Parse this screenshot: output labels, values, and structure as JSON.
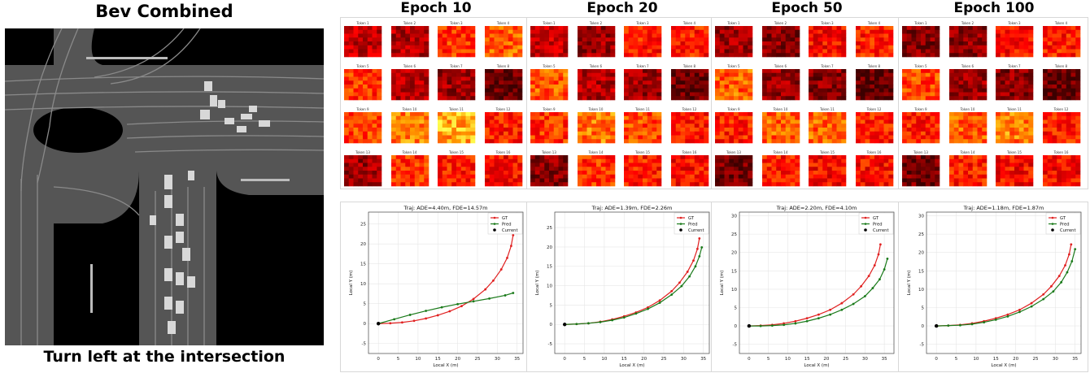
{
  "left": {
    "title": "Bev Combined",
    "caption": "Turn left at the intersection"
  },
  "colors": {
    "gt": "#e02020",
    "pred": "#1a7a1a",
    "current": "#000000",
    "road": "#555555",
    "lane": "#8a8a8a",
    "vehicle": "#d8d8d8",
    "offroad": "#000000"
  },
  "epochs": [
    {
      "title": "Epoch 10",
      "tokens": [
        "Token 1",
        "Token 2",
        "Token 3",
        "Token 4",
        "Token 5",
        "Token 6",
        "Token 7",
        "Token 8",
        "Token 9",
        "Token 10",
        "Token 11",
        "Token 12",
        "Token 13",
        "Token 14",
        "Token 15",
        "Token 16"
      ],
      "token_intensity": [
        0.35,
        0.3,
        0.6,
        0.7,
        0.6,
        0.3,
        0.25,
        0.1,
        0.65,
        0.75,
        0.85,
        0.55,
        0.25,
        0.6,
        0.55,
        0.5
      ]
    },
    {
      "title": "Epoch 20",
      "tokens": [
        "Token 1",
        "Token 2",
        "Token 3",
        "Token 4",
        "Token 5",
        "Token 6",
        "Token 7",
        "Token 8",
        "Token 9",
        "Token 10",
        "Token 11",
        "Token 12",
        "Token 13",
        "Token 14",
        "Token 15",
        "Token 16"
      ],
      "token_intensity": [
        0.35,
        0.25,
        0.55,
        0.55,
        0.7,
        0.3,
        0.25,
        0.12,
        0.6,
        0.75,
        0.65,
        0.55,
        0.2,
        0.6,
        0.55,
        0.5
      ]
    },
    {
      "title": "Epoch 50",
      "tokens": [
        "Token 1",
        "Token 2",
        "Token 3",
        "Token 4",
        "Token 5",
        "Token 6",
        "Token 7",
        "Token 8",
        "Token 9",
        "Token 10",
        "Token 11",
        "Token 12",
        "Token 13",
        "Token 14",
        "Token 15",
        "Token 16"
      ],
      "token_intensity": [
        0.25,
        0.2,
        0.5,
        0.55,
        0.7,
        0.25,
        0.2,
        0.1,
        0.55,
        0.7,
        0.7,
        0.55,
        0.15,
        0.55,
        0.5,
        0.5
      ]
    },
    {
      "title": "Epoch 100",
      "tokens": [
        "Token 1",
        "Token 2",
        "Token 3",
        "Token 4",
        "Token 5",
        "Token 6",
        "Token 7",
        "Token 8",
        "Token 9",
        "Token 10",
        "Token 11",
        "Token 12",
        "Token 13",
        "Token 14",
        "Token 15",
        "Token 16"
      ],
      "token_intensity": [
        0.2,
        0.2,
        0.5,
        0.55,
        0.65,
        0.25,
        0.2,
        0.1,
        0.55,
        0.7,
        0.75,
        0.55,
        0.15,
        0.55,
        0.5,
        0.5
      ]
    }
  ],
  "chart_data": [
    {
      "type": "line",
      "title": "Traj: ADE=4.40m, FDE=14.57m",
      "xlabel": "Local X (m)",
      "ylabel": "Local Y (m)",
      "xlim": [
        -2.5,
        36.5
      ],
      "ylim": [
        -7.5,
        28
      ],
      "xticks": [
        0,
        5,
        10,
        15,
        20,
        25,
        30,
        35
      ],
      "yticks": [
        -5,
        0,
        5,
        10,
        15,
        20,
        25
      ],
      "grid": true,
      "legend": "top-right",
      "series": [
        {
          "name": "GT",
          "x": [
            0,
            3,
            6,
            9,
            12,
            15,
            18,
            21,
            24,
            27,
            29,
            31,
            32.5,
            33.5,
            34
          ],
          "y": [
            0,
            0.1,
            0.3,
            0.7,
            1.3,
            2.1,
            3.1,
            4.4,
            6.2,
            8.6,
            10.8,
            13.6,
            16.5,
            19.5,
            22.2
          ]
        },
        {
          "name": "Pred",
          "x": [
            0,
            4,
            8,
            12,
            16,
            20,
            24,
            28,
            32,
            34
          ],
          "y": [
            0,
            1.1,
            2.2,
            3.2,
            4.1,
            4.9,
            5.6,
            6.3,
            7.1,
            7.7
          ]
        },
        {
          "name": "Current",
          "x": [
            0
          ],
          "y": [
            0
          ]
        }
      ]
    },
    {
      "type": "line",
      "title": "Traj: ADE=1.39m, FDE=2.26m",
      "xlabel": "Local X (m)",
      "ylabel": "Local Y (m)",
      "xlim": [
        -2.5,
        36.5
      ],
      "ylim": [
        -7.5,
        29
      ],
      "xticks": [
        0,
        5,
        10,
        15,
        20,
        25,
        30,
        35
      ],
      "yticks": [
        -5,
        0,
        5,
        10,
        15,
        20,
        25
      ],
      "grid": true,
      "legend": "top-right",
      "series": [
        {
          "name": "GT",
          "x": [
            0,
            3,
            6,
            9,
            12,
            15,
            18,
            21,
            24,
            27,
            29,
            31,
            32.5,
            33.5,
            34
          ],
          "y": [
            0,
            0.1,
            0.3,
            0.7,
            1.3,
            2.1,
            3.1,
            4.4,
            6.2,
            8.6,
            10.8,
            13.6,
            16.5,
            19.5,
            22.2
          ]
        },
        {
          "name": "Pred",
          "x": [
            0,
            3,
            6,
            9,
            12,
            15,
            18,
            21,
            24,
            27,
            29.5,
            31.5,
            33,
            34,
            34.6
          ],
          "y": [
            0,
            0.1,
            0.3,
            0.6,
            1.1,
            1.8,
            2.8,
            4,
            5.6,
            7.7,
            9.9,
            12.4,
            15,
            17.6,
            19.9
          ]
        },
        {
          "name": "Current",
          "x": [
            0
          ],
          "y": [
            0
          ]
        }
      ]
    },
    {
      "type": "line",
      "title": "Traj: ADE=2.20m, FDE=4.10m",
      "xlabel": "Local X (m)",
      "ylabel": "Local Y (m)",
      "xlim": [
        -2.5,
        37.5
      ],
      "ylim": [
        -7.5,
        31
      ],
      "xticks": [
        0,
        5,
        10,
        15,
        20,
        25,
        30,
        35
      ],
      "yticks": [
        -5,
        0,
        5,
        10,
        15,
        20,
        25,
        30
      ],
      "grid": true,
      "legend": "top-right",
      "series": [
        {
          "name": "GT",
          "x": [
            0,
            3,
            6,
            9,
            12,
            15,
            18,
            21,
            24,
            27,
            29,
            31,
            32.5,
            33.5,
            34
          ],
          "y": [
            0,
            0.1,
            0.3,
            0.7,
            1.3,
            2.1,
            3.1,
            4.4,
            6.2,
            8.6,
            10.8,
            13.6,
            16.5,
            19.5,
            22.2
          ]
        },
        {
          "name": "Pred",
          "x": [
            0,
            3,
            6,
            9,
            12,
            15,
            18,
            21,
            24,
            27,
            30,
            32,
            33.8,
            35,
            35.8
          ],
          "y": [
            0,
            0,
            0.1,
            0.3,
            0.7,
            1.3,
            2.1,
            3.1,
            4.4,
            6,
            8.1,
            10.3,
            12.7,
            15.4,
            18.3
          ]
        },
        {
          "name": "Current",
          "x": [
            0
          ],
          "y": [
            0
          ]
        }
      ]
    },
    {
      "type": "line",
      "title": "Traj: ADE=1.18m, FDE=1.87m",
      "xlabel": "Local X (m)",
      "ylabel": "Local Y (m)",
      "xlim": [
        -2.5,
        36.5
      ],
      "ylim": [
        -7.5,
        31
      ],
      "xticks": [
        0,
        5,
        10,
        15,
        20,
        25,
        30,
        35
      ],
      "yticks": [
        -5,
        0,
        5,
        10,
        15,
        20,
        25,
        30
      ],
      "grid": true,
      "legend": "top-right",
      "series": [
        {
          "name": "GT",
          "x": [
            0,
            3,
            6,
            9,
            12,
            15,
            18,
            21,
            24,
            27,
            29,
            31,
            32.5,
            33.5,
            34
          ],
          "y": [
            0,
            0.1,
            0.3,
            0.7,
            1.3,
            2.1,
            3.1,
            4.4,
            6.2,
            8.6,
            10.8,
            13.6,
            16.5,
            19.5,
            22.2
          ]
        },
        {
          "name": "Pred",
          "x": [
            0,
            3,
            6,
            9,
            12,
            15,
            18,
            21,
            24,
            27,
            29.5,
            31.5,
            33,
            34.2,
            35
          ],
          "y": [
            0,
            0.1,
            0.2,
            0.5,
            1,
            1.7,
            2.6,
            3.8,
            5.3,
            7.3,
            9.4,
            11.9,
            14.6,
            17.6,
            20.9
          ]
        },
        {
          "name": "Current",
          "x": [
            0
          ],
          "y": [
            0
          ]
        }
      ]
    }
  ]
}
